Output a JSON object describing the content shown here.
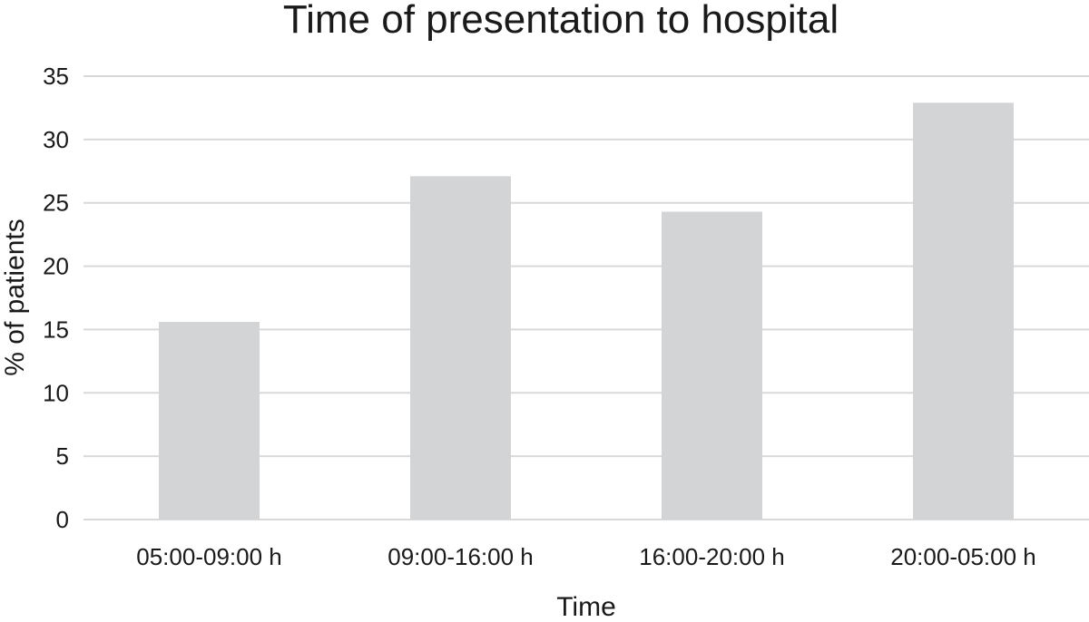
{
  "chart_data": {
    "type": "bar",
    "title": "Time of presentation to hospital",
    "xlabel": "Time",
    "ylabel": "% of patients",
    "categories": [
      "05:00-09:00 h",
      "09:00-16:00 h",
      "16:00-20:00 h",
      "20:00-05:00 h"
    ],
    "values": [
      15.6,
      27.1,
      24.3,
      32.9
    ],
    "ylim": [
      0,
      35
    ],
    "yticks": [
      "0",
      "5",
      "10",
      "15",
      "20",
      "25",
      "30",
      "35"
    ],
    "grid": true,
    "legend": false,
    "colors": {
      "bar": "#d3d4d6",
      "grid": "#d9d9d9",
      "text": "#1a1a1a"
    }
  }
}
